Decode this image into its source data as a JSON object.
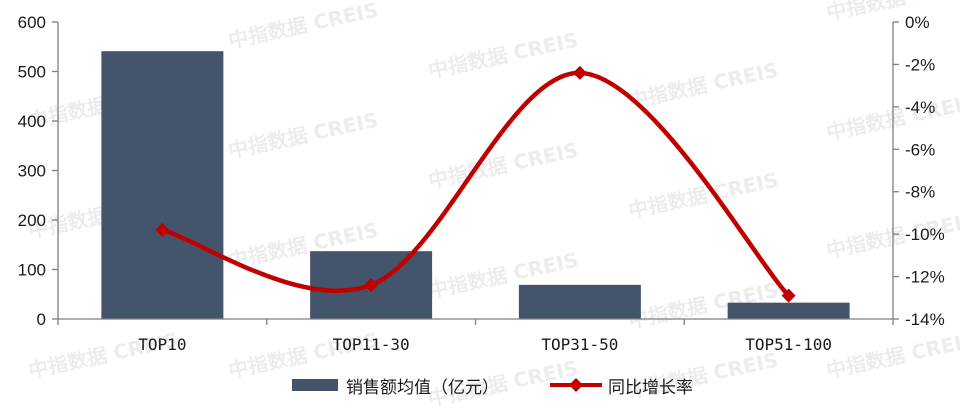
{
  "chart_data": {
    "type": "bar",
    "categories": [
      "TOP10",
      "TOP11-30",
      "TOP31-50",
      "TOP51-100"
    ],
    "series": [
      {
        "name": "销售额均值（亿元）",
        "type": "bar",
        "axis": "left",
        "color": "#44546A",
        "values": [
          541,
          137,
          69,
          33
        ]
      },
      {
        "name": "同比增长率",
        "type": "line",
        "axis": "right",
        "color": "#C00000",
        "values": [
          -9.8,
          -12.4,
          -2.4,
          -12.9
        ]
      }
    ],
    "left_axis": {
      "ylim": [
        0,
        600
      ],
      "ticks": [
        "0",
        "100",
        "200",
        "300",
        "400",
        "500",
        "600"
      ]
    },
    "right_axis": {
      "ylim": [
        -14,
        0
      ],
      "ticks": [
        "-14%",
        "-12%",
        "-10%",
        "-8%",
        "-6%",
        "-4%",
        "-2%",
        "0%"
      ]
    },
    "legend_position": "bottom",
    "grid": false
  },
  "watermark": "中指数据 CREIS"
}
